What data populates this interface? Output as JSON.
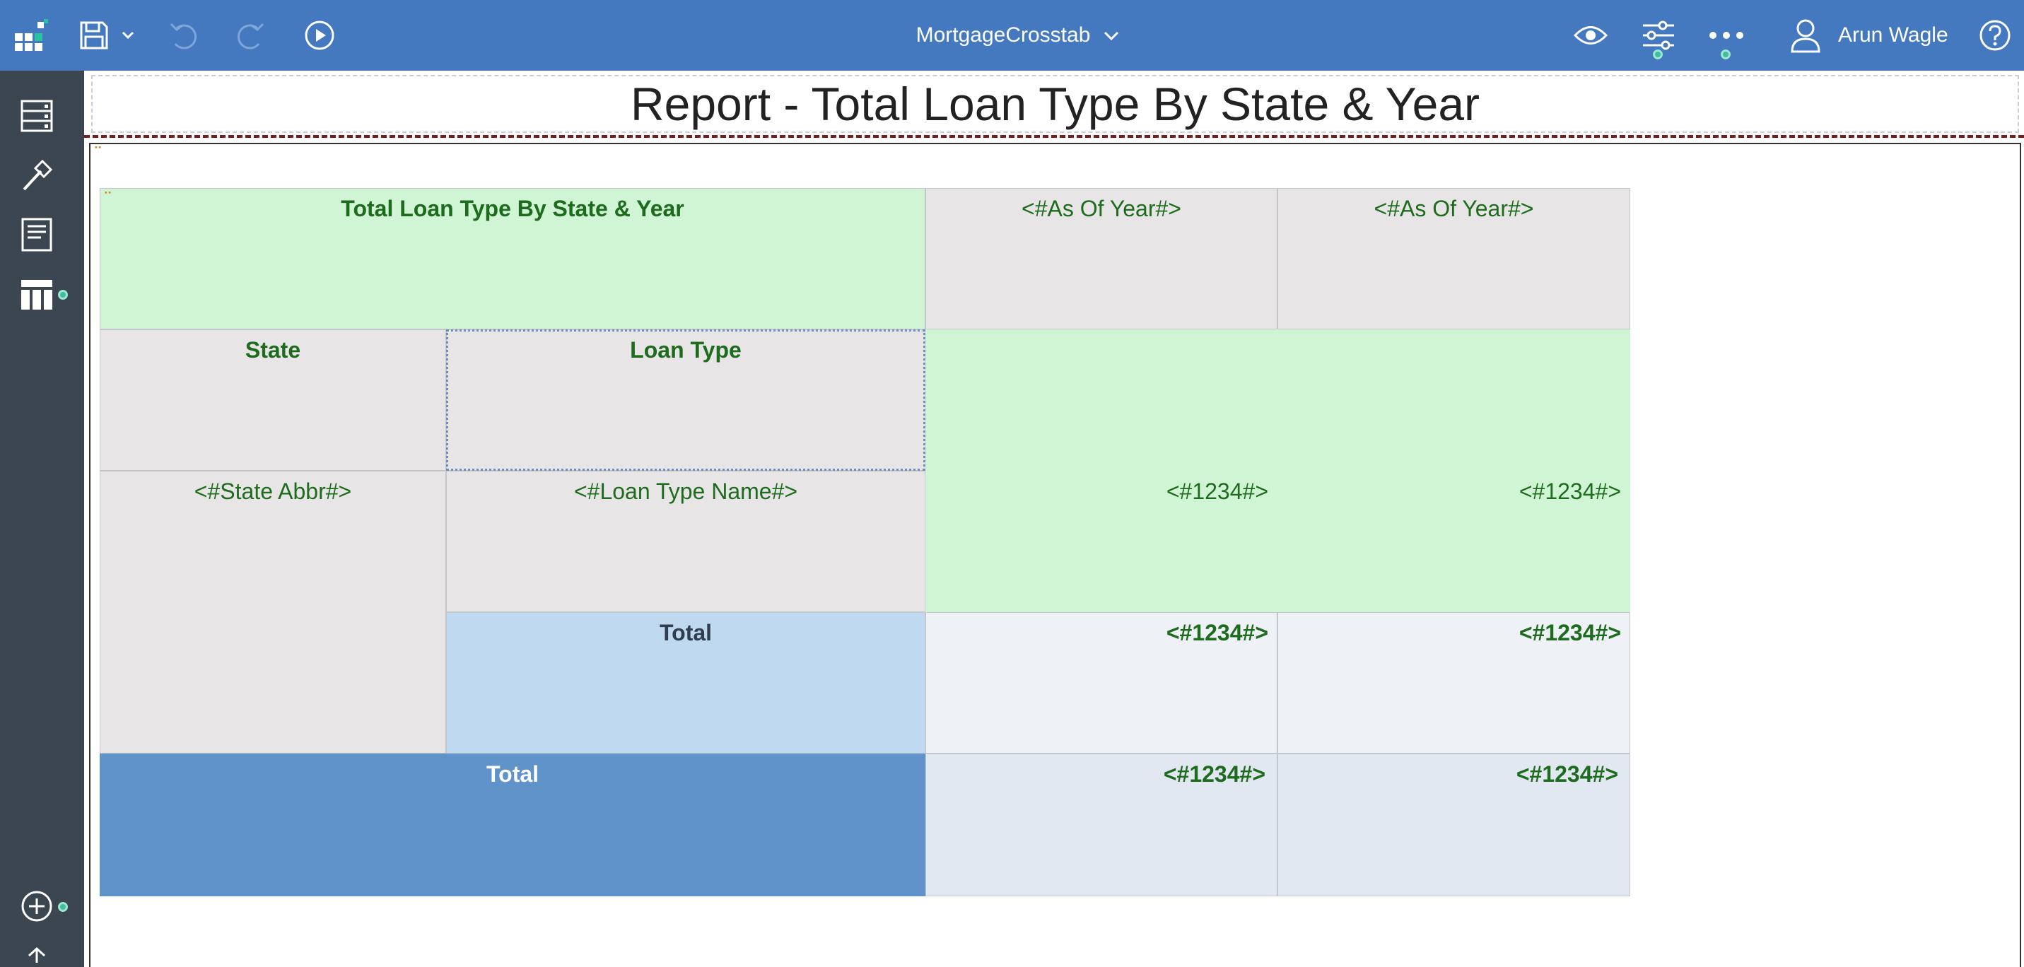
{
  "toolbar": {
    "report_name": "MortgageCrosstab",
    "user_name": "Arun Wagle",
    "icons": [
      "app-switcher-icon",
      "save-icon",
      "chevron-down-icon",
      "undo-icon",
      "redo-icon",
      "run-icon",
      "preview-eye-icon",
      "properties-sliders-icon",
      "more-icon",
      "user-icon",
      "help-icon"
    ]
  },
  "sidebar": {
    "icons": [
      "pages-icon",
      "toolbox-hammer-icon",
      "report-page-icon",
      "data-table-icon",
      "add-icon",
      "collapse-icon"
    ]
  },
  "report": {
    "title": "Report - Total Loan Type By State & Year"
  },
  "crosstab": {
    "corner_title": "Total Loan Type By State & Year",
    "col_header_1": "<#As Of Year#>",
    "col_header_2": "<#As Of Year#>",
    "row_header_state": "State",
    "row_header_loan_type": "Loan Type",
    "state_value": "<#State Abbr#>",
    "loan_type_value": "<#Loan Type Name#>",
    "cell_value_1": "<#1234#>",
    "cell_value_2": "<#1234#>",
    "subtotal_label": "Total",
    "subtotal_value_1": "<#1234#>",
    "subtotal_value_2": "<#1234#>",
    "grand_total_label": "Total",
    "grand_total_value_1": "<#1234#>",
    "grand_total_value_2": "<#1234#>"
  },
  "colors": {
    "topbar": "#4479c0",
    "sidebar": "#3b4650",
    "header_green": "#d0f5d4",
    "header_grey": "#e8e5e6",
    "text_green": "#1d6b1d",
    "total_blue": "#6093ca",
    "subtotal_blue": "#bfd9f0",
    "badge_teal": "#3fbfa0"
  }
}
